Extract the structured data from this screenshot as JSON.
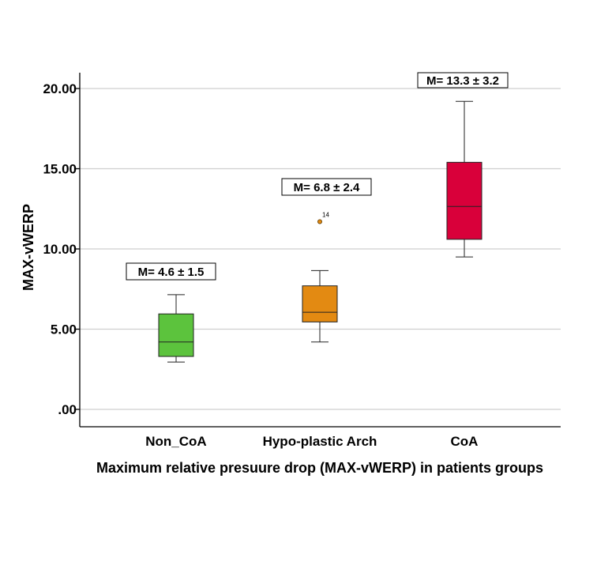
{
  "chart_data": {
    "type": "box",
    "xlabel": "Maximum relative presuure drop (MAX-vWERP) in patients groups",
    "ylabel": "MAX-vWERP",
    "ylim": [
      -1,
      21
    ],
    "yticks": [
      0,
      5,
      10,
      15,
      20
    ],
    "ytick_labels": [
      ".00",
      "5.00",
      "10.00",
      "15.00",
      "20.00"
    ],
    "grid": true,
    "categories": [
      "Non_CoA",
      "Hypo-plastic Arch",
      "CoA"
    ],
    "groups": [
      {
        "category": "Non_CoA",
        "color": "#5cc33d",
        "whisker_low": 2.95,
        "q1": 3.3,
        "median": 4.2,
        "q3": 5.95,
        "whisker_high": 7.15,
        "annotation": "M= 4.6 ± 1.5",
        "outliers": []
      },
      {
        "category": "Hypo-plastic Arch",
        "color": "#e38a12",
        "whisker_low": 4.2,
        "q1": 5.45,
        "median": 6.05,
        "q3": 7.7,
        "whisker_high": 8.65,
        "annotation": "M= 6.8 ± 2.4",
        "outliers": [
          {
            "value": 11.7,
            "label": "14"
          }
        ]
      },
      {
        "category": "CoA",
        "color": "#d9003a",
        "whisker_low": 9.5,
        "q1": 10.6,
        "median": 12.65,
        "q3": 15.4,
        "whisker_high": 19.2,
        "annotation": "M= 13.3 ± 3.2",
        "outliers": []
      }
    ]
  }
}
